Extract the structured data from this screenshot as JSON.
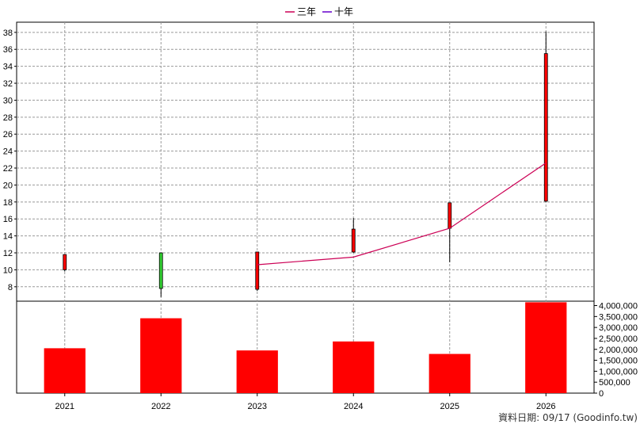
{
  "chart_data": {
    "type": "candlestick+line+bar",
    "legend": [
      {
        "label": "三年",
        "color": "#cc0055"
      },
      {
        "label": "十年",
        "color": "#6600cc"
      }
    ],
    "categories": [
      "2021",
      "2022",
      "2023",
      "2024",
      "2025",
      "2026"
    ],
    "price": {
      "ylim": [
        6.3,
        39.2
      ],
      "yticks": [
        8,
        10,
        12,
        14,
        16,
        18,
        20,
        22,
        24,
        26,
        28,
        30,
        32,
        34,
        36,
        38
      ],
      "candles": [
        {
          "open": 10.0,
          "close": 11.8,
          "high": 11.8,
          "low": 9.8,
          "up": true
        },
        {
          "open": 12.0,
          "close": 7.8,
          "high": 12.0,
          "low": 6.8,
          "up": false
        },
        {
          "open": 7.7,
          "close": 12.1,
          "high": 12.1,
          "low": 7.5,
          "up": true
        },
        {
          "open": 12.1,
          "close": 14.8,
          "high": 16.1,
          "low": 12.0,
          "up": true
        },
        {
          "open": 14.9,
          "close": 17.9,
          "high": 17.9,
          "low": 10.9,
          "up": true
        },
        {
          "open": 18.1,
          "close": 35.5,
          "high": 38.1,
          "low": 18.0,
          "up": true
        }
      ],
      "line_series": [
        {
          "name": "三年",
          "color": "#cc0055",
          "values": [
            null,
            null,
            10.6,
            11.5,
            14.9,
            22.6
          ]
        }
      ]
    },
    "volume": {
      "ylim": [
        0,
        4200000
      ],
      "yticks": [
        0,
        500000,
        1000000,
        1500000,
        2000000,
        2500000,
        3000000,
        3500000,
        4000000
      ],
      "ytick_labels": [
        "0",
        "500,000",
        "1,000,000",
        "1,500,000",
        "2,000,000",
        "2,500,000",
        "3,000,000",
        "3,500,000",
        "4,000,000"
      ],
      "values": [
        2050000,
        3420000,
        1950000,
        2360000,
        1790000,
        4150000
      ],
      "color": "#ff0000"
    },
    "grid": true,
    "legend_position": "top-center"
  },
  "footer": "資料日期: 09/17  (Goodinfo.tw)"
}
